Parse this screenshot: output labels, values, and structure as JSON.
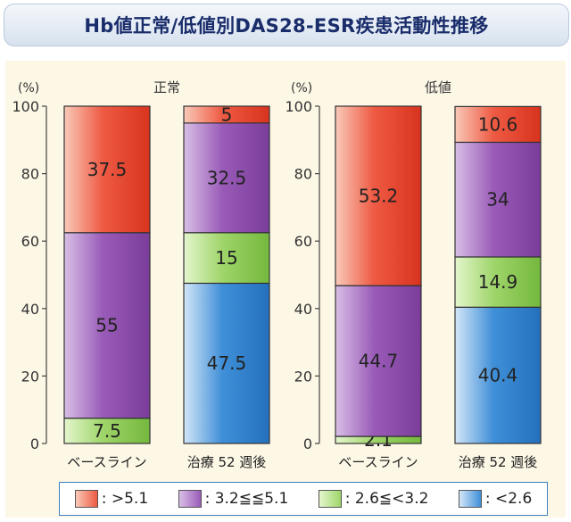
{
  "title": "Hb値正常/低値別DAS28-ESR疾患活動性推移",
  "colors": {
    "high": "#ee5a43",
    "moderate": "#9a5bb8",
    "low": "#9fd56a",
    "remission": "#3f8fd8"
  },
  "legend": {
    "high": ": >5.1",
    "moderate": ": 3.2≦≦5.1",
    "low": ": 2.6≦<3.2",
    "remission": ": <2.6"
  },
  "chart_data": [
    {
      "type": "bar",
      "stacked": true,
      "title": "正常",
      "ylabel": "(%)",
      "ylim": [
        0,
        100
      ],
      "yticks": [
        "0",
        "20",
        "40",
        "60",
        "80",
        "100"
      ],
      "categories": [
        "ベースライン",
        "治療 52 週後"
      ],
      "series": [
        {
          "key": "remission",
          "name": ": <2.6",
          "values": [
            0,
            47.5
          ],
          "labels": [
            "",
            "47.5"
          ]
        },
        {
          "key": "low",
          "name": ": 2.6≦<3.2",
          "values": [
            7.5,
            15
          ],
          "labels": [
            "7.5",
            "15"
          ]
        },
        {
          "key": "moderate",
          "name": ": 3.2≦≦5.1",
          "values": [
            55,
            32.5
          ],
          "labels": [
            "55",
            "32.5"
          ]
        },
        {
          "key": "high",
          "name": ": >5.1",
          "values": [
            37.5,
            5
          ],
          "labels": [
            "37.5",
            "5"
          ]
        }
      ]
    },
    {
      "type": "bar",
      "stacked": true,
      "title": "低値",
      "ylabel": "(%)",
      "ylim": [
        0,
        100
      ],
      "yticks": [
        "0",
        "20",
        "40",
        "60",
        "80",
        "100"
      ],
      "categories": [
        "ベースライン",
        "治療 52 週後"
      ],
      "series": [
        {
          "key": "remission",
          "name": ": <2.6",
          "values": [
            0,
            40.4
          ],
          "labels": [
            "",
            "40.4"
          ]
        },
        {
          "key": "low",
          "name": ": 2.6≦<3.2",
          "values": [
            2.1,
            14.9
          ],
          "labels": [
            "2.1",
            "14.9"
          ]
        },
        {
          "key": "moderate",
          "name": ": 3.2≦≦5.1",
          "values": [
            44.7,
            34
          ],
          "labels": [
            "44.7",
            "34"
          ]
        },
        {
          "key": "high",
          "name": ": >5.1",
          "values": [
            53.2,
            10.6
          ],
          "labels": [
            "53.2",
            "10.6"
          ]
        }
      ]
    }
  ]
}
